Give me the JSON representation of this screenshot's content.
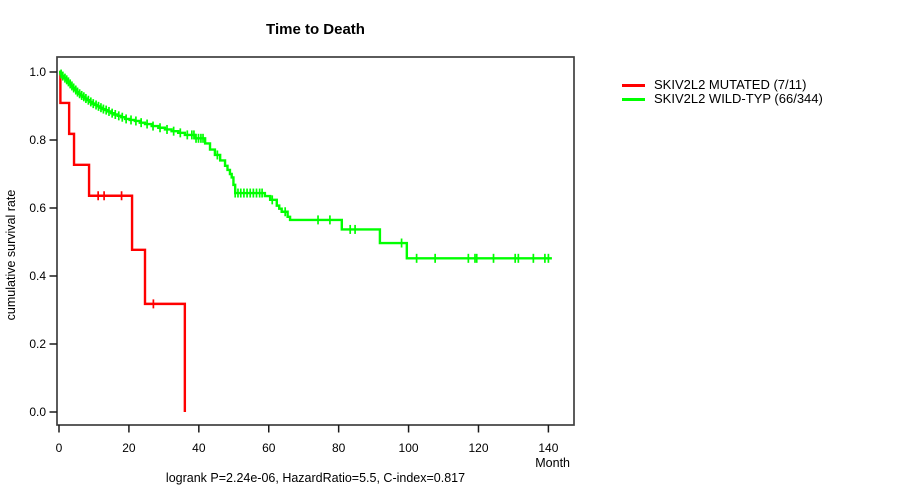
{
  "chart_data": {
    "type": "line",
    "subtype": "kaplan-meier-step-curves",
    "title": "Time to Death",
    "xlabel": "Month",
    "ylabel": "cumulative survival rate",
    "caption": "logrank P=2.24e-06, HazardRatio=5.5, C-index=0.817",
    "xlim": [
      0,
      147
    ],
    "ylim": [
      0.0,
      1.0
    ],
    "x_ticks": [
      0,
      20,
      40,
      60,
      80,
      100,
      120,
      140
    ],
    "x_tick_labels": [
      "0",
      "20",
      "40",
      "60",
      "80",
      "100",
      "120",
      "140"
    ],
    "y_ticks": [
      0.0,
      0.2,
      0.4,
      0.6,
      0.8,
      1.0
    ],
    "y_tick_labels": [
      "0.0",
      "0.2",
      "0.4",
      "0.6",
      "0.8",
      "1.0"
    ],
    "grid": false,
    "legend_position": "right-outside",
    "axis_color": "#3f3f3f",
    "series": [
      {
        "name": "SKIV2L2 MUTATED (7/11)",
        "color": "#ff0000",
        "steps": [
          [
            0,
            1.0
          ],
          [
            0.4,
            0.909
          ],
          [
            2.9,
            0.818
          ],
          [
            4.3,
            0.727
          ],
          [
            8.6,
            0.636
          ],
          [
            20.9,
            0.477
          ],
          [
            24.6,
            0.318
          ],
          [
            36.0,
            0.0
          ]
        ],
        "censors": [
          11.2,
          12.9,
          17.9,
          27.0
        ]
      },
      {
        "name": "SKIV2L2 WILD-TYP (66/344)",
        "color": "#00ff00",
        "steps": [
          [
            0,
            1.0
          ],
          [
            0.4,
            0.994
          ],
          [
            0.9,
            0.988
          ],
          [
            1.4,
            0.982
          ],
          [
            1.9,
            0.977
          ],
          [
            2.4,
            0.971
          ],
          [
            2.9,
            0.965
          ],
          [
            3.4,
            0.959
          ],
          [
            3.9,
            0.953
          ],
          [
            4.5,
            0.947
          ],
          [
            5.0,
            0.941
          ],
          [
            5.6,
            0.936
          ],
          [
            6.2,
            0.931
          ],
          [
            6.8,
            0.927
          ],
          [
            7.4,
            0.922
          ],
          [
            8.1,
            0.917
          ],
          [
            8.8,
            0.912
          ],
          [
            9.5,
            0.907
          ],
          [
            10.3,
            0.903
          ],
          [
            11.0,
            0.899
          ],
          [
            11.7,
            0.895
          ],
          [
            12.4,
            0.891
          ],
          [
            13.2,
            0.888
          ],
          [
            14.0,
            0.884
          ],
          [
            14.9,
            0.879
          ],
          [
            15.8,
            0.875
          ],
          [
            16.8,
            0.871
          ],
          [
            17.8,
            0.867
          ],
          [
            18.9,
            0.862
          ],
          [
            20.2,
            0.859
          ],
          [
            21.7,
            0.856
          ],
          [
            23.1,
            0.851
          ],
          [
            24.6,
            0.847
          ],
          [
            26.5,
            0.841
          ],
          [
            28.4,
            0.836
          ],
          [
            30.3,
            0.831
          ],
          [
            32.2,
            0.826
          ],
          [
            34.1,
            0.821
          ],
          [
            36.0,
            0.815
          ],
          [
            38.9,
            0.805
          ],
          [
            41.8,
            0.79
          ],
          [
            43.2,
            0.772
          ],
          [
            44.6,
            0.756
          ],
          [
            46.1,
            0.74
          ],
          [
            47.5,
            0.724
          ],
          [
            48.2,
            0.712
          ],
          [
            48.9,
            0.7
          ],
          [
            49.4,
            0.69
          ],
          [
            49.9,
            0.668
          ],
          [
            50.4,
            0.644
          ],
          [
            58.9,
            0.635
          ],
          [
            60.4,
            0.624
          ],
          [
            62.3,
            0.607
          ],
          [
            63.0,
            0.598
          ],
          [
            63.7,
            0.589
          ],
          [
            65.4,
            0.574
          ],
          [
            66.1,
            0.565
          ],
          [
            80.9,
            0.537
          ],
          [
            91.8,
            0.497
          ],
          [
            99.5,
            0.452
          ],
          [
            141.0,
            0.452
          ]
        ],
        "censors": [
          0.6,
          1.1,
          1.7,
          2.2,
          2.7,
          3.2,
          3.7,
          4.2,
          4.8,
          5.3,
          5.9,
          6.5,
          7.1,
          7.7,
          8.4,
          9.1,
          9.8,
          10.6,
          11.3,
          12.0,
          12.7,
          13.5,
          14.3,
          15.2,
          16.1,
          17.1,
          18.1,
          19.2,
          20.6,
          22.0,
          23.5,
          25.2,
          26.9,
          28.9,
          30.9,
          32.8,
          34.7,
          36.7,
          38.0,
          38.6,
          39.2,
          39.9,
          40.6,
          41.2,
          45.3,
          50.4,
          51.2,
          52.0,
          52.9,
          53.8,
          54.7,
          55.6,
          56.5,
          57.4,
          58.1,
          61.0,
          64.7,
          74.1,
          77.5,
          83.3,
          84.7,
          98.0,
          102.3,
          107.6,
          117.1,
          119.0,
          119.5,
          124.3,
          130.5,
          131.4,
          135.7,
          139.0,
          140.0
        ]
      }
    ]
  }
}
